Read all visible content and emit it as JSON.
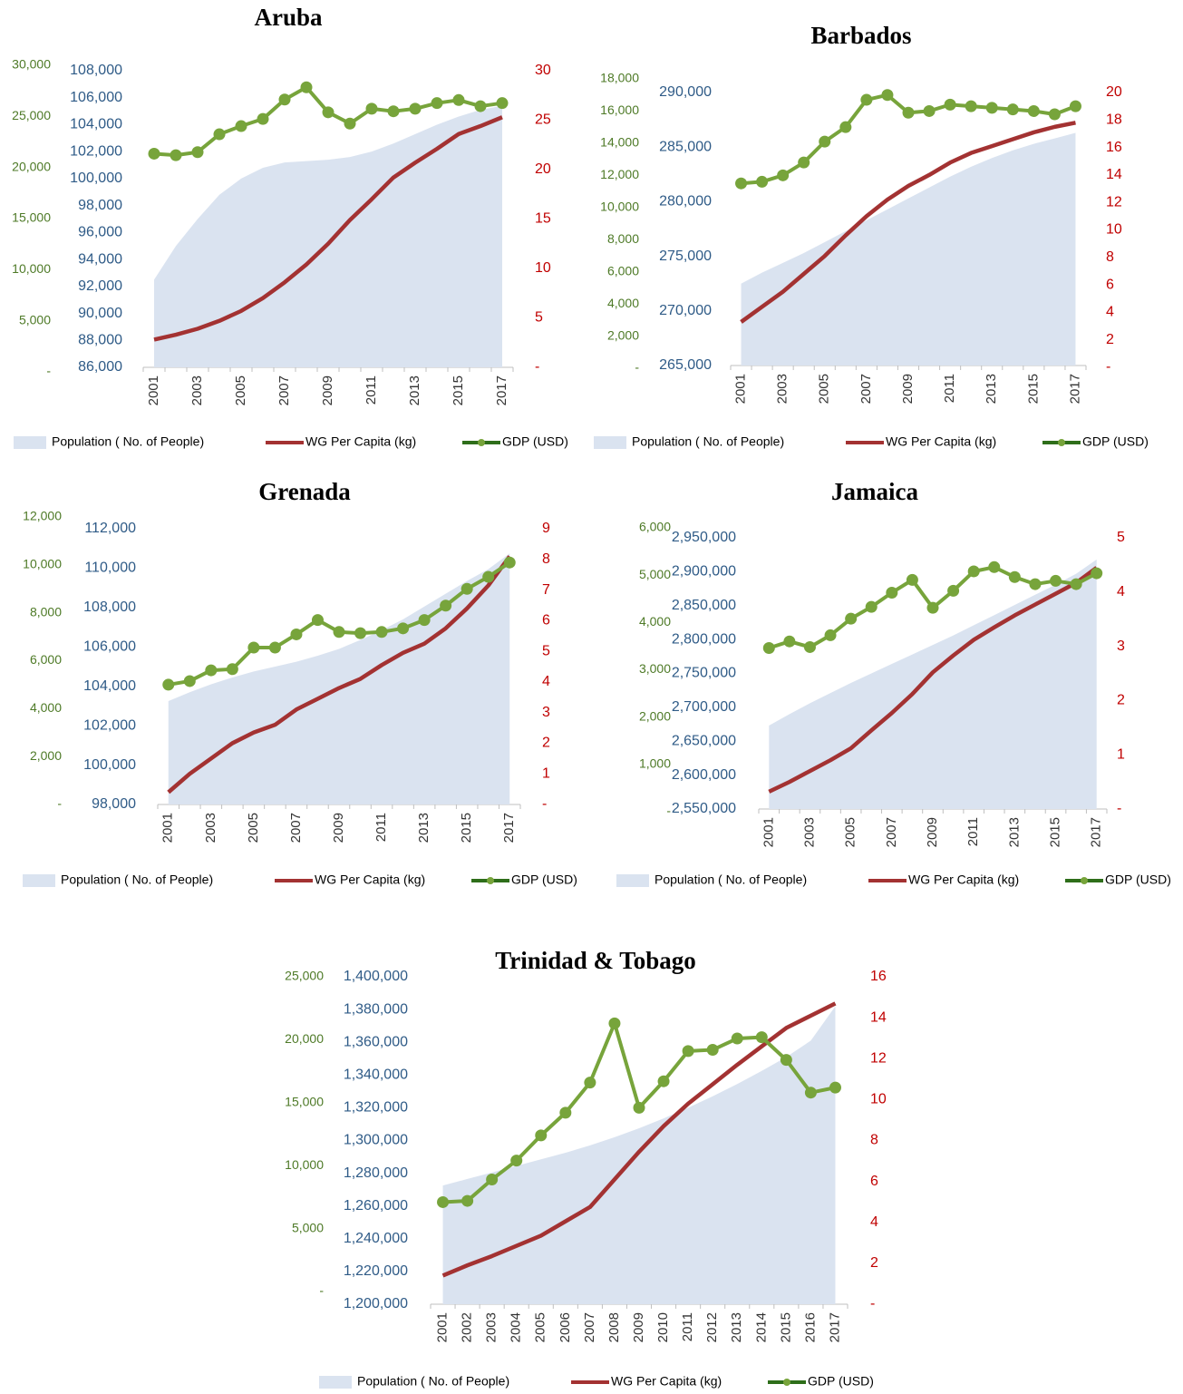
{
  "chart_data": [
    {
      "type": "combo",
      "title": "Aruba",
      "categories": [
        "2001",
        null,
        "2003",
        null,
        "2005",
        null,
        "2007",
        null,
        "2009",
        null,
        "2011",
        null,
        "2013",
        null,
        "2015",
        null,
        "2017"
      ],
      "series": [
        {
          "name": "Population ( No. of People)",
          "type": "area",
          "axis": "y",
          "color": "#dae3f0",
          "values": [
            92500,
            95000,
            97000,
            98800,
            100000,
            100800,
            101200,
            101300,
            101400,
            101600,
            102000,
            102600,
            103300,
            104000,
            104600,
            105100,
            105400
          ]
        },
        {
          "name": "WG Per Capita (kg)",
          "type": "line",
          "axis": "y2",
          "color": "#a33232",
          "values": [
            2.8,
            3.3,
            3.9,
            4.7,
            5.7,
            7.0,
            8.6,
            10.4,
            12.5,
            14.9,
            17.0,
            19.2,
            20.7,
            22.1,
            23.6,
            24.4,
            25.3
          ]
        },
        {
          "name": "GDP (USD)",
          "type": "line",
          "marker": true,
          "axis": "y3",
          "color": "#77a43b",
          "values": [
            21350,
            21200,
            21500,
            23250,
            24050,
            24750,
            26650,
            27850,
            25400,
            24300,
            25750,
            25500,
            25750,
            26300,
            26600,
            26000,
            26300
          ]
        }
      ],
      "ylim": [
        86000,
        108000
      ],
      "yticks": [
        {
          "value": 86000,
          "label": "86,000"
        },
        {
          "value": 88000,
          "label": "88,000"
        },
        {
          "value": 90000,
          "label": "90,000"
        },
        {
          "value": 92000,
          "label": "92,000"
        },
        {
          "value": 94000,
          "label": "94,000"
        },
        {
          "value": 96000,
          "label": "96,000"
        },
        {
          "value": 98000,
          "label": "98,000"
        },
        {
          "value": 100000,
          "label": "100,000"
        },
        {
          "value": 102000,
          "label": "102,000"
        },
        {
          "value": 104000,
          "label": "104,000"
        },
        {
          "value": 106000,
          "label": "106,000"
        },
        {
          "value": 108000,
          "label": "108,000"
        }
      ],
      "y2lim": [
        0,
        30
      ],
      "y2ticks": [
        {
          "value": 0,
          "label": "-"
        },
        5,
        10,
        15,
        20,
        25,
        30
      ],
      "y3lim": [
        0,
        30000
      ],
      "y3ticks": [
        {
          "value": 0,
          "label": "-"
        },
        {
          "value": 5000,
          "label": "5,000"
        },
        {
          "value": 10000,
          "label": "10,000"
        },
        {
          "value": 15000,
          "label": "15,000"
        },
        {
          "value": 20000,
          "label": "20,000"
        },
        {
          "value": 25000,
          "label": "25,000"
        },
        {
          "value": 30000,
          "label": "30,000"
        }
      ]
    },
    {
      "type": "combo",
      "title": "Barbados",
      "categories": [
        "2001",
        null,
        "2003",
        null,
        "2005",
        null,
        "2007",
        null,
        "2009",
        null,
        "2011",
        null,
        "2013",
        null,
        "2015",
        null,
        "2017"
      ],
      "series": [
        {
          "name": "Population ( No. of People)",
          "type": "area",
          "axis": "y",
          "color": "#dae3f0",
          "values": [
            272500,
            273500,
            274400,
            275300,
            276300,
            277300,
            278300,
            279300,
            280300,
            281300,
            282300,
            283200,
            284000,
            284700,
            285300,
            285800,
            286300
          ]
        },
        {
          "name": "WG Per Capita (kg)",
          "type": "line",
          "axis": "y2",
          "color": "#a33232",
          "values": [
            3.3,
            4.4,
            5.5,
            6.8,
            8.1,
            9.6,
            11.0,
            12.2,
            13.2,
            14.0,
            14.9,
            15.6,
            16.1,
            16.6,
            17.1,
            17.5,
            17.8
          ]
        },
        {
          "name": "GDP (USD)",
          "type": "line",
          "marker": true,
          "axis": "y3",
          "color": "#77a43b",
          "values": [
            11500,
            11600,
            12000,
            12800,
            14100,
            15000,
            16700,
            17000,
            15900,
            16000,
            16400,
            16300,
            16200,
            16100,
            16000,
            15800,
            16300
          ]
        }
      ],
      "ylim": [
        265000,
        290000
      ],
      "yticks": [
        {
          "value": 265000,
          "label": "265,000"
        },
        {
          "value": 270000,
          "label": "270,000"
        },
        {
          "value": 275000,
          "label": "275,000"
        },
        {
          "value": 280000,
          "label": "280,000"
        },
        {
          "value": 285000,
          "label": "285,000"
        },
        {
          "value": 290000,
          "label": "290,000"
        }
      ],
      "y2lim": [
        0,
        20
      ],
      "y2ticks": [
        {
          "value": 0,
          "label": "-"
        },
        2,
        4,
        6,
        8,
        10,
        12,
        14,
        16,
        18,
        20
      ],
      "y3lim": [
        0,
        18000
      ],
      "y3ticks": [
        {
          "value": 0,
          "label": "-"
        },
        {
          "value": 2000,
          "label": "2,000"
        },
        {
          "value": 4000,
          "label": "4,000"
        },
        {
          "value": 6000,
          "label": "6,000"
        },
        {
          "value": 8000,
          "label": "8,000"
        },
        {
          "value": 10000,
          "label": "10,000"
        },
        {
          "value": 12000,
          "label": "12,000"
        },
        {
          "value": 14000,
          "label": "14,000"
        },
        {
          "value": 16000,
          "label": "16,000"
        },
        {
          "value": 18000,
          "label": "18,000"
        }
      ]
    },
    {
      "type": "combo",
      "title": "Grenada",
      "categories": [
        "2001",
        null,
        "2003",
        null,
        "2005",
        null,
        "2007",
        null,
        "2009",
        null,
        "2011",
        null,
        "2013",
        null,
        "2015",
        null,
        "2017"
      ],
      "series": [
        {
          "name": "Population ( No. of People)",
          "type": "area",
          "axis": "y",
          "color": "#dae3f0",
          "values": [
            103250,
            103700,
            104100,
            104450,
            104750,
            105000,
            105250,
            105550,
            105900,
            106350,
            106850,
            107400,
            108050,
            108700,
            109350,
            109950,
            110750
          ]
        },
        {
          "name": "WG Per Capita (kg)",
          "type": "line",
          "axis": "y2",
          "color": "#a33232",
          "values": [
            0.4,
            1.0,
            1.5,
            2.0,
            2.35,
            2.6,
            3.1,
            3.45,
            3.8,
            4.1,
            4.55,
            4.95,
            5.25,
            5.75,
            6.4,
            7.15,
            8.1
          ]
        },
        {
          "name": "GDP (USD)",
          "type": "line",
          "marker": true,
          "axis": "y3",
          "color": "#77a43b",
          "values": [
            5000,
            5150,
            5600,
            5650,
            6550,
            6550,
            7100,
            7700,
            7200,
            7150,
            7200,
            7350,
            7700,
            8300,
            9000,
            9500,
            10100
          ]
        }
      ],
      "ylim": [
        98000,
        112000
      ],
      "yticks": [
        {
          "value": 98000,
          "label": "98,000"
        },
        {
          "value": 100000,
          "label": "100,000"
        },
        {
          "value": 102000,
          "label": "102,000"
        },
        {
          "value": 104000,
          "label": "104,000"
        },
        {
          "value": 106000,
          "label": "106,000"
        },
        {
          "value": 108000,
          "label": "108,000"
        },
        {
          "value": 110000,
          "label": "110,000"
        },
        {
          "value": 112000,
          "label": "112,000"
        }
      ],
      "y2lim": [
        0,
        9
      ],
      "y2ticks": [
        {
          "value": 0,
          "label": "-"
        },
        1,
        2,
        3,
        4,
        5,
        6,
        7,
        8,
        9
      ],
      "y3lim": [
        0,
        12000
      ],
      "y3ticks": [
        {
          "value": 0,
          "label": "-"
        },
        {
          "value": 2000,
          "label": "2,000"
        },
        {
          "value": 4000,
          "label": "4,000"
        },
        {
          "value": 6000,
          "label": "6,000"
        },
        {
          "value": 8000,
          "label": "8,000"
        },
        {
          "value": 10000,
          "label": "10,000"
        },
        {
          "value": 12000,
          "label": "12,000"
        }
      ]
    },
    {
      "type": "combo",
      "title": "Jamaica",
      "categories": [
        "2001",
        null,
        "2003",
        null,
        "2005",
        null,
        "2007",
        null,
        "2009",
        null,
        "2011",
        null,
        "2013",
        null,
        "2015",
        null,
        "2017"
      ],
      "series": [
        {
          "name": "Population ( No. of People)",
          "type": "area",
          "axis": "y",
          "color": "#dae3f0",
          "values": [
            2673000,
            2690000,
            2706000,
            2721000,
            2736000,
            2750000,
            2764000,
            2778000,
            2792000,
            2806000,
            2821000,
            2836000,
            2851000,
            2866000,
            2881000,
            2897000,
            2918000
          ]
        },
        {
          "name": "WG Per Capita (kg)",
          "type": "line",
          "axis": "y2",
          "color": "#a33232",
          "values": [
            0.32,
            0.5,
            0.7,
            0.9,
            1.12,
            1.45,
            1.77,
            2.12,
            2.52,
            2.83,
            3.12,
            3.35,
            3.57,
            3.77,
            3.97,
            4.17,
            4.45
          ]
        },
        {
          "name": "GDP (USD)",
          "type": "line",
          "marker": true,
          "axis": "y3",
          "color": "#77a43b",
          "values": [
            3460,
            3600,
            3480,
            3730,
            4080,
            4330,
            4630,
            4900,
            4310,
            4670,
            5080,
            5170,
            4960,
            4810,
            4880,
            4810,
            5040
          ]
        }
      ],
      "ylim": [
        2550000,
        2950000
      ],
      "yticks": [
        {
          "value": 2550000,
          "label": "2,550,000"
        },
        {
          "value": 2600000,
          "label": "2,600,000"
        },
        {
          "value": 2650000,
          "label": "2,650,000"
        },
        {
          "value": 2700000,
          "label": "2,700,000"
        },
        {
          "value": 2750000,
          "label": "2,750,000"
        },
        {
          "value": 2800000,
          "label": "2,800,000"
        },
        {
          "value": 2850000,
          "label": "2,850,000"
        },
        {
          "value": 2900000,
          "label": "2,900,000"
        },
        {
          "value": 2950000,
          "label": "2,950,000"
        }
      ],
      "y2lim": [
        0,
        5
      ],
      "y2ticks": [
        {
          "value": 0,
          "label": "-"
        },
        1,
        2,
        3,
        4,
        5
      ],
      "y3lim": [
        0,
        6000
      ],
      "y3ticks": [
        {
          "value": 0,
          "label": "-"
        },
        {
          "value": 1000,
          "label": "1,000"
        },
        {
          "value": 2000,
          "label": "2,000"
        },
        {
          "value": 3000,
          "label": "3,000"
        },
        {
          "value": 4000,
          "label": "4,000"
        },
        {
          "value": 5000,
          "label": "5,000"
        },
        {
          "value": 6000,
          "label": "6,000"
        }
      ]
    },
    {
      "type": "combo",
      "title": "Trinidad & Tobago",
      "categories": [
        "2001",
        "2002",
        "2003",
        "2004",
        "2005",
        "2006",
        "2007",
        "2008",
        "2009",
        "2010",
        "2011",
        "2012",
        "2013",
        "2014",
        "2015",
        "2016",
        "2017"
      ],
      "series": [
        {
          "name": "Population ( No. of People)",
          "type": "area",
          "axis": "y",
          "color": "#dae3f0",
          "values": [
            1272500,
            1276500,
            1280500,
            1284500,
            1288500,
            1292500,
            1297000,
            1302000,
            1307500,
            1313500,
            1320000,
            1327000,
            1334500,
            1342500,
            1351000,
            1361000,
            1382000
          ]
        },
        {
          "name": "WG Per Capita (kg)",
          "type": "line",
          "axis": "y2",
          "color": "#a33232",
          "values": [
            1.4,
            1.9,
            2.35,
            2.85,
            3.35,
            4.05,
            4.75,
            6.1,
            7.45,
            8.7,
            9.8,
            10.75,
            11.7,
            12.6,
            13.5,
            14.1,
            14.7
          ]
        },
        {
          "name": "GDP (USD)",
          "type": "line",
          "marker": true,
          "axis": "y3",
          "color": "#77a43b",
          "values": [
            7100,
            7200,
            8900,
            10400,
            12400,
            14200,
            16600,
            21300,
            14600,
            16700,
            19100,
            19200,
            20100,
            20200,
            18400,
            15800,
            16200
          ]
        }
      ],
      "ylim": [
        1200000,
        1400000
      ],
      "yticks": [
        {
          "value": 1200000,
          "label": "1,200,000"
        },
        {
          "value": 1220000,
          "label": "1,220,000"
        },
        {
          "value": 1240000,
          "label": "1,240,000"
        },
        {
          "value": 1260000,
          "label": "1,260,000"
        },
        {
          "value": 1280000,
          "label": "1,280,000"
        },
        {
          "value": 1300000,
          "label": "1,300,000"
        },
        {
          "value": 1320000,
          "label": "1,320,000"
        },
        {
          "value": 1340000,
          "label": "1,340,000"
        },
        {
          "value": 1360000,
          "label": "1,360,000"
        },
        {
          "value": 1380000,
          "label": "1,380,000"
        },
        {
          "value": 1400000,
          "label": "1,400,000"
        }
      ],
      "y2lim": [
        0,
        16
      ],
      "y2ticks": [
        {
          "value": 0,
          "label": "-"
        },
        2,
        4,
        6,
        8,
        10,
        12,
        14,
        16
      ],
      "y3lim": [
        0,
        25000
      ],
      "y3ticks": [
        {
          "value": 0,
          "label": "-"
        },
        {
          "value": 5000,
          "label": "5,000"
        },
        {
          "value": 10000,
          "label": "10,000"
        },
        {
          "value": 15000,
          "label": "15,000"
        },
        {
          "value": 20000,
          "label": "20,000"
        },
        {
          "value": 25000,
          "label": "25,000"
        }
      ]
    }
  ]
}
